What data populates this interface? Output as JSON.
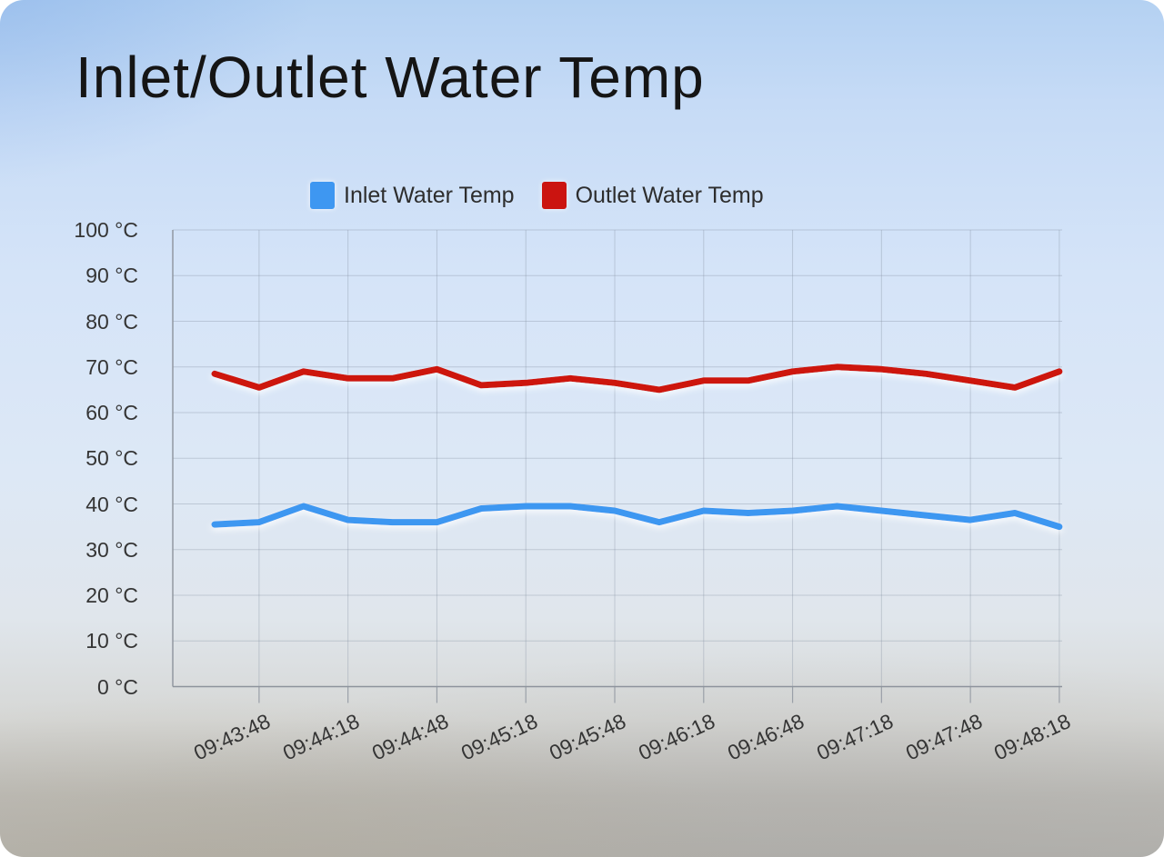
{
  "page": {
    "title": "Inlet/Outlet Water Temp"
  },
  "legend": {
    "items": [
      {
        "label": "Inlet Water Temp",
        "color": "#3e97f1"
      },
      {
        "label": "Outlet Water Temp",
        "color": "#cb1410"
      }
    ]
  },
  "chart_data": {
    "type": "line",
    "title": "Inlet/Outlet Water Temp",
    "x_tick_labels": [
      "09:43:48",
      "09:44:18",
      "09:44:48",
      "09:45:18",
      "09:45:48",
      "09:46:18",
      "09:46:48",
      "09:47:18",
      "09:47:48",
      "09:48:18"
    ],
    "y_tick_labels": [
      "100 °C",
      "90 °C",
      "80 °C",
      "70 °C",
      "60 °C",
      "50 °C",
      "40 °C",
      "30 °C",
      "20 °C",
      "10 °C",
      "0 °C"
    ],
    "ylim": [
      0,
      100
    ],
    "ytick_step": 10,
    "grid": true,
    "legend_position": "top",
    "n_points": 20,
    "labeled_point_start_index": 1,
    "labeled_point_every": 2,
    "series": [
      {
        "name": "Inlet Water Temp",
        "color": "#3e97f1",
        "values": [
          35.5,
          36,
          39.5,
          36.5,
          36,
          36,
          39,
          39.5,
          39.5,
          38.5,
          36,
          38.5,
          38,
          38.5,
          39.5,
          38.5,
          37.5,
          36.5,
          38,
          35
        ]
      },
      {
        "name": "Outlet Water Temp",
        "color": "#cd1310",
        "values": [
          68.5,
          65.5,
          69,
          67.5,
          67.5,
          69.5,
          66,
          66.5,
          67.5,
          66.5,
          65,
          67,
          67,
          69,
          70,
          69.5,
          68.5,
          67,
          65.5,
          69
        ]
      }
    ]
  }
}
